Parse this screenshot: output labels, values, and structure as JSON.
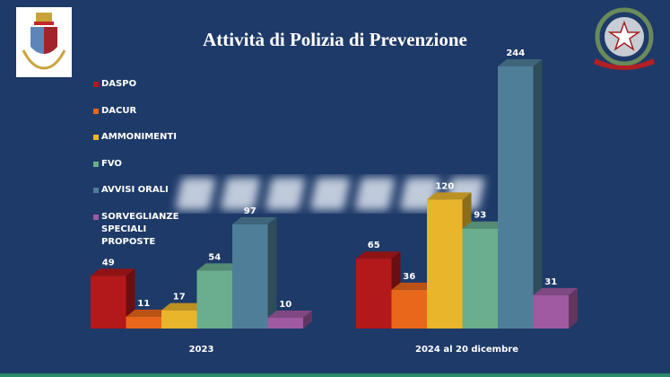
{
  "title": "Attività di Polizia di Prevenzione",
  "watermark": "POLIZIA",
  "logos": {
    "right_text": "REPUBBLICA ITALIANA"
  },
  "chart_data": {
    "type": "bar",
    "title": "Attività di Polizia di Prevenzione",
    "categories": [
      "2023",
      "2024 al 20 dicembre"
    ],
    "series": [
      {
        "name": "DASPO",
        "values": [
          49,
          65
        ],
        "color": "#b3181a"
      },
      {
        "name": "DACUR",
        "values": [
          11,
          36
        ],
        "color": "#e8671a"
      },
      {
        "name": "AMMONIMENTI",
        "values": [
          17,
          120
        ],
        "color": "#e9b52b"
      },
      {
        "name": "FVO",
        "values": [
          54,
          93
        ],
        "color": "#6aae8e"
      },
      {
        "name": "AVVISI ORALI",
        "values": [
          97,
          244
        ],
        "color": "#4f7e98"
      },
      {
        "name": "SORVEGLIANZE SPECIALI PROPOSTE",
        "values": [
          10,
          31
        ],
        "color": "#a05aa2"
      }
    ],
    "legend": "left",
    "grid": false,
    "ylim": [
      0,
      244
    ],
    "style": "3d-bars"
  }
}
